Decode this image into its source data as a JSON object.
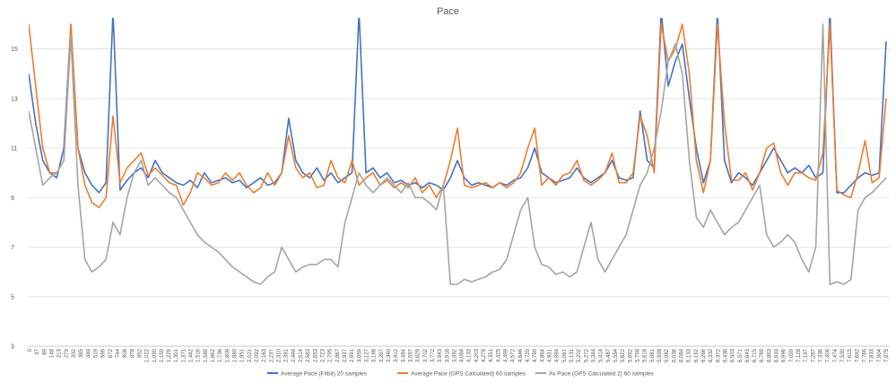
{
  "chart_data": {
    "type": "line",
    "title": "Pace",
    "xlabel": "",
    "ylabel": "",
    "ylim": [
      3,
      16
    ],
    "yticks": [
      3,
      5,
      7,
      9,
      11,
      13,
      15
    ],
    "grid": true,
    "legend_position": "bottom",
    "x_tick_labels": [
      "0",
      "37",
      "89",
      "148",
      "213",
      "279",
      "332",
      "385",
      "449",
      "519",
      "596",
      "672",
      "744",
      "808",
      "878",
      "952",
      "1,022",
      "1,090",
      "1,159",
      "1,229",
      "1,301",
      "1,371",
      "1,442",
      "1,516",
      "1,589",
      "1,662",
      "1,736",
      "1,809",
      "1,880",
      "1,951",
      "2,021",
      "2,092",
      "2,163",
      "2,237",
      "2,310",
      "2,381",
      "2,448",
      "2,514",
      "2,583",
      "2,653",
      "2,723",
      "2,795",
      "2,867",
      "2,937",
      "2,991",
      "3,059",
      "3,127",
      "3,198",
      "3,267",
      "3,340",
      "3,412",
      "3,484",
      "3,557",
      "3,629",
      "3,702",
      "3,772",
      "3,843",
      "3,916",
      "3,992",
      "4,064",
      "4,133",
      "4,203",
      "4,278",
      "4,351",
      "4,425",
      "4,499",
      "4,572",
      "4,646",
      "4,720",
      "4,790",
      "4,864",
      "4,931",
      "4,994",
      "5,061",
      "5,131",
      "5,202",
      "5,272",
      "5,344",
      "5,414",
      "5,487",
      "5,554",
      "5,622",
      "5,692",
      "5,758",
      "5,818",
      "5,881",
      "5,938",
      "5,982",
      "6,036",
      "6,084",
      "6,133",
      "6,192",
      "6,266",
      "6,332",
      "6,372",
      "6,436",
      "6,503",
      "6,571",
      "6,643",
      "6,715",
      "6,789",
      "6,863",
      "6,933",
      "6,996",
      "7,059",
      "7,128",
      "7,197",
      "7,267",
      "7,336",
      "7,406",
      "7,474",
      "7,539",
      "7,615",
      "7,692",
      "7,766",
      "7,833",
      "7,904",
      "7,975"
    ],
    "series": [
      {
        "name": "Average Pace (Fitbit) 20 samples",
        "color": "#4472c4",
        "values": [
          14.0,
          12.0,
          10.5,
          10.0,
          9.8,
          11.0,
          16.0,
          11.0,
          10.0,
          9.5,
          9.2,
          9.6,
          16.5,
          9.3,
          9.7,
          10.0,
          10.2,
          9.8,
          10.5,
          10.0,
          9.8,
          9.6,
          9.5,
          9.7,
          9.4,
          10.0,
          9.6,
          9.7,
          9.8,
          9.6,
          9.7,
          9.4,
          9.6,
          9.8,
          9.5,
          9.6,
          10.0,
          12.2,
          10.5,
          10.0,
          9.8,
          10.2,
          9.7,
          10.0,
          9.6,
          9.8,
          10.0,
          16.5,
          10.0,
          10.2,
          9.8,
          10.0,
          9.6,
          9.7,
          9.5,
          9.6,
          9.4,
          9.6,
          9.5,
          9.3,
          9.8,
          10.5,
          9.8,
          9.5,
          9.6,
          9.5,
          9.4,
          9.6,
          9.5,
          9.7,
          9.8,
          10.2,
          11.0,
          10.0,
          9.8,
          9.6,
          9.7,
          9.8,
          10.2,
          9.8,
          9.6,
          9.8,
          10.0,
          10.5,
          9.8,
          9.7,
          9.8,
          12.5,
          10.5,
          10.2,
          16.5,
          13.5,
          14.5,
          15.2,
          13.0,
          11.0,
          9.6,
          10.5,
          16.5,
          10.5,
          9.6,
          10.0,
          9.8,
          9.5,
          10.0,
          10.5,
          11.0,
          10.5,
          10.0,
          10.2,
          10.0,
          10.3,
          9.8,
          10.0,
          16.5,
          9.2,
          9.2,
          9.5,
          9.8,
          10.0,
          9.9,
          10.0,
          15.3
        ]
      },
      {
        "name": "Average Pace (GPS Calculated) 60 samples",
        "color": "#ed7d31",
        "values": [
          16.0,
          13.5,
          11.0,
          10.0,
          10.0,
          10.5,
          16.0,
          11.0,
          9.5,
          8.8,
          8.6,
          9.0,
          12.3,
          9.6,
          10.2,
          10.5,
          10.8,
          9.9,
          10.2,
          9.9,
          9.6,
          9.5,
          8.7,
          9.2,
          10.0,
          9.8,
          9.5,
          9.6,
          10.0,
          9.7,
          10.0,
          9.5,
          9.2,
          9.4,
          10.0,
          9.5,
          10.0,
          11.5,
          10.2,
          9.8,
          10.0,
          9.4,
          9.5,
          10.5,
          9.8,
          9.6,
          10.5,
          9.5,
          9.8,
          10.0,
          9.5,
          9.7,
          9.4,
          9.6,
          9.4,
          9.8,
          9.2,
          9.5,
          9.0,
          9.5,
          10.5,
          11.8,
          9.5,
          9.4,
          9.5,
          9.6,
          9.4,
          9.6,
          9.4,
          9.6,
          10.0,
          11.0,
          11.8,
          9.5,
          9.8,
          9.5,
          9.9,
          10.0,
          10.5,
          9.7,
          9.5,
          9.7,
          10.0,
          10.8,
          9.6,
          9.6,
          10.0,
          12.3,
          11.5,
          10.0,
          16.0,
          14.5,
          15.0,
          16.0,
          14.0,
          10.5,
          9.2,
          10.5,
          16.0,
          12.0,
          9.7,
          9.7,
          10.0,
          9.3,
          10.0,
          11.0,
          11.2,
          10.0,
          9.5,
          10.0,
          10.0,
          9.8,
          9.7,
          10.8,
          16.0,
          9.3,
          9.1,
          9.0,
          10.0,
          11.3,
          9.6,
          9.8,
          13.0
        ]
      },
      {
        "name": "Av Pace (GPS Calculated 2) 60 samples",
        "color": "#a5a5a5",
        "values": [
          12.5,
          11.0,
          9.5,
          9.8,
          10.0,
          10.5,
          15.5,
          9.5,
          6.5,
          6.0,
          6.2,
          6.5,
          8.0,
          7.5,
          9.0,
          10.0,
          10.5,
          9.5,
          9.8,
          9.5,
          9.2,
          9.0,
          8.5,
          8.0,
          7.5,
          7.2,
          7.0,
          6.8,
          6.5,
          6.2,
          6.0,
          5.8,
          5.6,
          5.5,
          5.8,
          6.0,
          7.0,
          6.5,
          6.0,
          6.2,
          6.3,
          6.3,
          6.5,
          6.5,
          6.2,
          8.0,
          9.0,
          10.0,
          9.5,
          9.2,
          9.5,
          9.8,
          9.5,
          9.2,
          9.6,
          9.0,
          9.0,
          8.8,
          8.5,
          9.5,
          5.5,
          5.5,
          5.7,
          5.6,
          5.7,
          5.8,
          6.0,
          6.1,
          6.5,
          7.5,
          8.5,
          9.0,
          7.0,
          6.3,
          6.2,
          5.9,
          6.0,
          5.8,
          6.0,
          7.0,
          8.0,
          6.5,
          6.0,
          6.5,
          7.0,
          7.5,
          8.5,
          9.5,
          10.0,
          11.0,
          12.5,
          14.5,
          15.2,
          14.0,
          10.5,
          8.2,
          7.8,
          8.5,
          8.0,
          7.5,
          7.8,
          8.0,
          8.5,
          9.0,
          9.5,
          7.5,
          7.0,
          7.2,
          7.5,
          7.2,
          6.5,
          6.0,
          7.0,
          16.0,
          5.5,
          5.6,
          5.5,
          5.7,
          8.5,
          9.0,
          9.2,
          9.5,
          9.8
        ]
      }
    ]
  }
}
